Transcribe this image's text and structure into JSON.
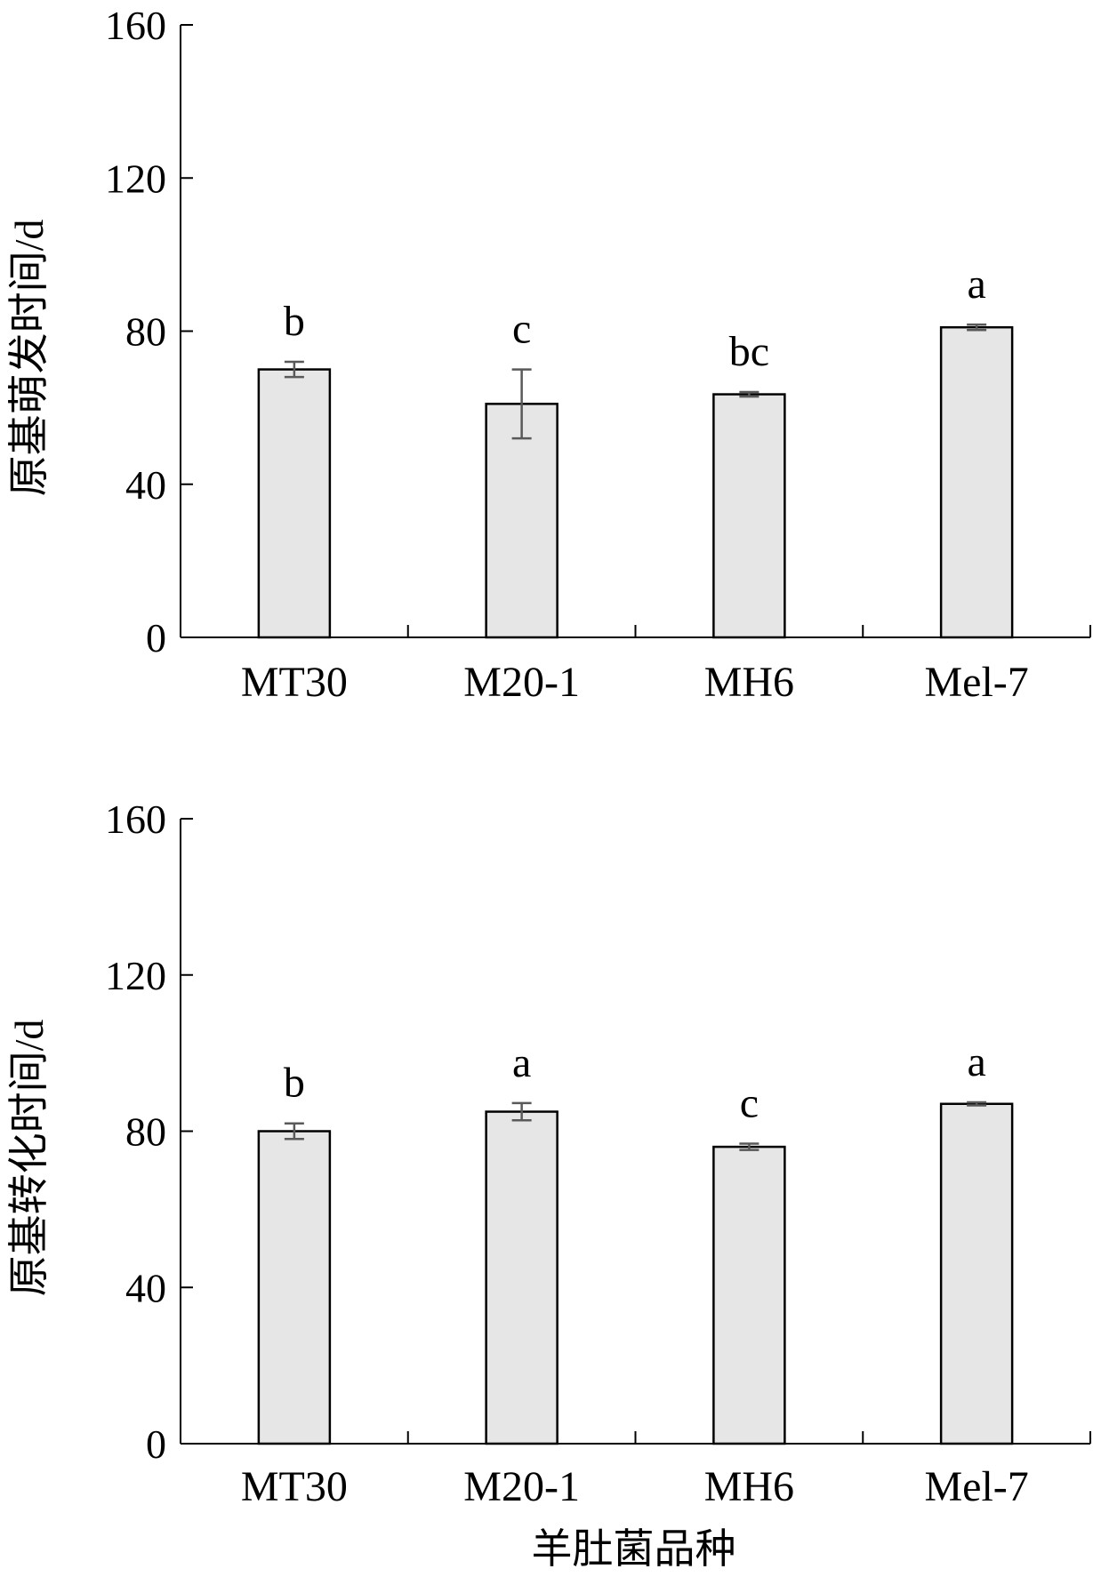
{
  "chart_data": [
    {
      "type": "bar",
      "title": "",
      "xlabel": "",
      "ylabel": "原基萌发时间/d",
      "ylim": [
        0,
        160
      ],
      "yticks": [
        "0",
        "40",
        "80",
        "120",
        "160"
      ],
      "categories": [
        "MT30",
        "M20-1",
        "MH6",
        "Mel-7"
      ],
      "values": [
        70,
        61,
        63.5,
        81
      ],
      "errors": [
        2,
        9,
        0.6,
        0.7
      ],
      "letters": [
        "b",
        "c",
        "bc",
        "a"
      ],
      "grid": false
    },
    {
      "type": "bar",
      "title": "",
      "xlabel": "羊肚菌品种",
      "ylabel": "原基转化时间/d",
      "ylim": [
        0,
        160
      ],
      "yticks": [
        "0",
        "40",
        "80",
        "120",
        "160"
      ],
      "categories": [
        "MT30",
        "M20-1",
        "MH6",
        "Mel-7"
      ],
      "values": [
        80,
        85,
        76,
        87
      ],
      "errors": [
        2,
        2.2,
        0.8,
        0.4
      ],
      "letters": [
        "b",
        "a",
        "c",
        "a"
      ],
      "grid": false
    }
  ],
  "colors": {
    "bar_fill": "#e6e6e6",
    "bar_stroke": "#000000",
    "error_bar": "#595959"
  }
}
